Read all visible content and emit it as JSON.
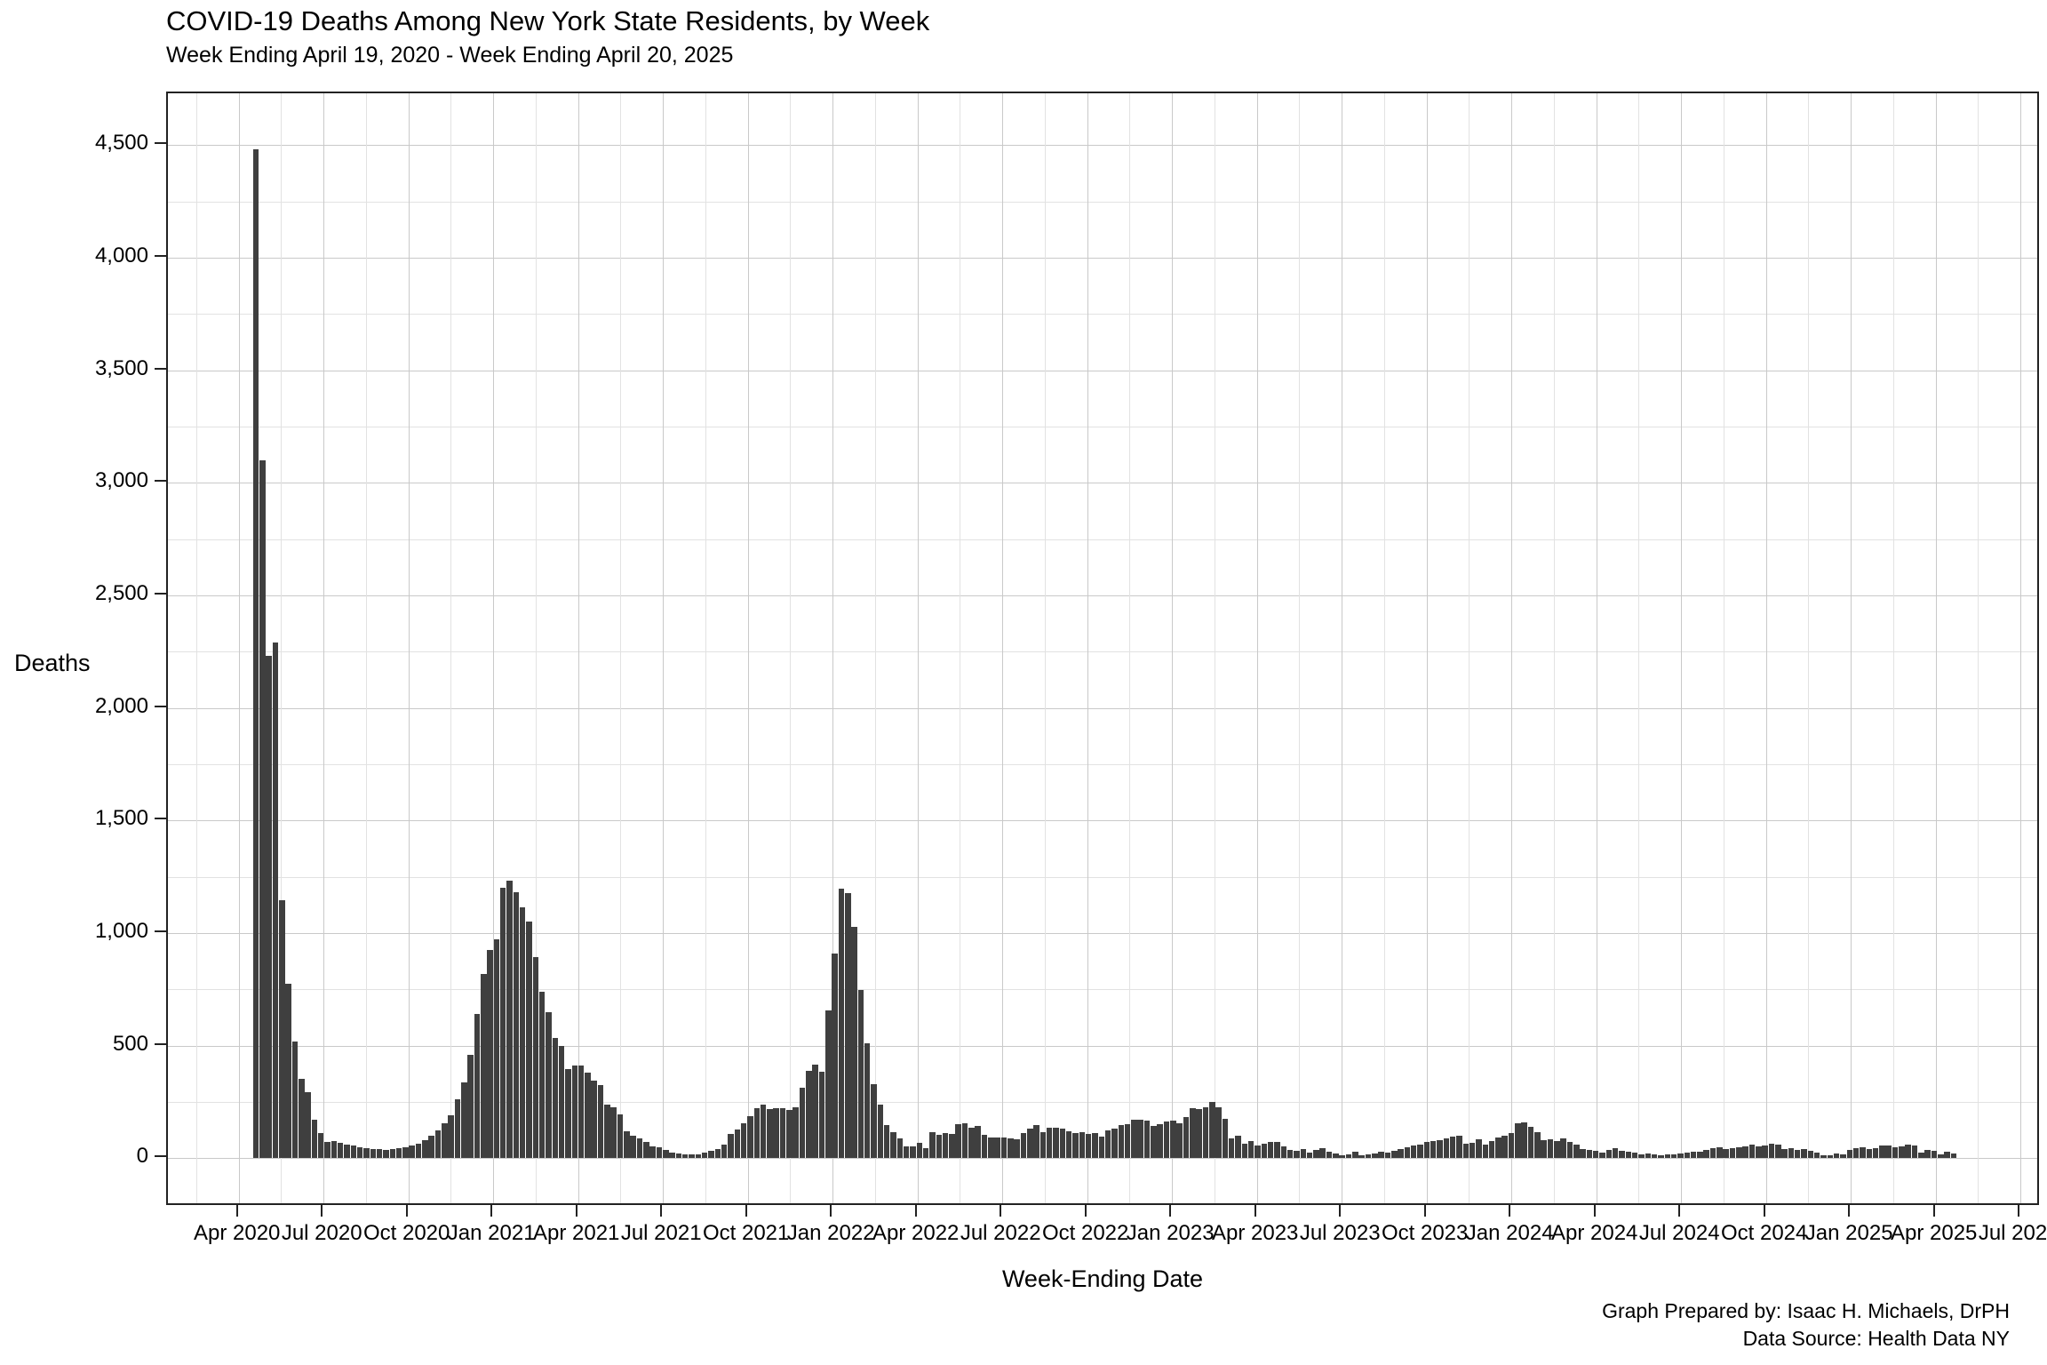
{
  "title": "COVID-19 Deaths Among New York State Residents, by Week",
  "subtitle": "Week Ending April 19, 2020 - Week Ending April 20, 2025",
  "y_axis": {
    "title": "Deaths",
    "tick_labels": [
      "0",
      "500",
      "1,000",
      "1,500",
      "2,000",
      "2,500",
      "3,000",
      "3,500",
      "4,000",
      "4,500"
    ],
    "tick_values": [
      0,
      500,
      1000,
      1500,
      2000,
      2500,
      3000,
      3500,
      4000,
      4500
    ]
  },
  "x_axis": {
    "title": "Week-Ending Date",
    "tick_labels": [
      "Apr 2020",
      "Jul 2020",
      "Oct 2020",
      "Jan 2021",
      "Apr 2021",
      "Jul 2021",
      "Oct 2021",
      "Jan 2022",
      "Apr 2022",
      "Jul 2022",
      "Oct 2022",
      "Jan 2023",
      "Apr 2023",
      "Jul 2023",
      "Oct 2023",
      "Jan 2024",
      "Apr 2024",
      "Jul 2024",
      "Oct 2024",
      "Jan 2025",
      "Apr 2025",
      "Jul 2025"
    ]
  },
  "footer": {
    "prepared_by": "Graph Prepared by: Isaac H. Michaels, DrPH",
    "data_source": "Data Source: Health Data NY"
  },
  "chart_data": {
    "type": "bar",
    "title": "COVID-19 Deaths Among New York State Residents, by Week",
    "subtitle": "Week Ending April 19, 2020 - Week Ending April 20, 2025",
    "xlabel": "Week-Ending Date",
    "ylabel": "Deaths",
    "ylim": [
      0,
      4500
    ],
    "y_major_step": 500,
    "y_minor_step": 250,
    "grid": true,
    "legend": "none",
    "bar_color": "#3F3F3F",
    "interval": "weekly",
    "first_week_ending": "2020-04-19",
    "last_week_ending": "2025-04-20",
    "n_weeks": 262,
    "values": [
      4480,
      3100,
      2230,
      2290,
      1146,
      775,
      520,
      354,
      295,
      170,
      111,
      72,
      75,
      68,
      62,
      58,
      50,
      45,
      42,
      40,
      38,
      42,
      45,
      48,
      55,
      65,
      80,
      100,
      125,
      155,
      190,
      260,
      337,
      459,
      640,
      817,
      923,
      971,
      1203,
      1232,
      1181,
      1115,
      1052,
      895,
      738,
      650,
      536,
      498,
      394,
      413,
      410,
      380,
      345,
      325,
      238,
      225,
      193,
      120,
      101,
      87,
      71,
      54,
      49,
      35,
      25,
      21,
      18,
      16,
      18,
      25,
      31,
      41,
      62,
      106,
      126,
      154,
      185,
      222,
      238,
      218,
      222,
      221,
      214,
      225,
      314,
      387,
      417,
      383,
      655,
      908,
      1199,
      1179,
      1028,
      749,
      509,
      328,
      239,
      146,
      114,
      90,
      51,
      54,
      67,
      45,
      114,
      104,
      110,
      107,
      153,
      155,
      135,
      143,
      104,
      93,
      91,
      93,
      88,
      84,
      112,
      130,
      149,
      114,
      137,
      134,
      130,
      120,
      110,
      114,
      107,
      110,
      97,
      124,
      133,
      147,
      150,
      172,
      172,
      167,
      143,
      153,
      163,
      166,
      157,
      183,
      222,
      218,
      228,
      249,
      225,
      176,
      87,
      101,
      66,
      78,
      55,
      64,
      71,
      74,
      53,
      36,
      32,
      41,
      25,
      36,
      45,
      28,
      21,
      12,
      18,
      28,
      12,
      16,
      20,
      28,
      25,
      33,
      41,
      49,
      55,
      62,
      71,
      78,
      80,
      88,
      97,
      101,
      64,
      67,
      84,
      62,
      78,
      93,
      101,
      113,
      154,
      160,
      141,
      114,
      80,
      85,
      78,
      88,
      71,
      60,
      41,
      38,
      32,
      25,
      36,
      43,
      32,
      28,
      25,
      18,
      22,
      18,
      14,
      18,
      16,
      21,
      25,
      28,
      30,
      38,
      45,
      49,
      41,
      46,
      49,
      54,
      62,
      51,
      57,
      64,
      62,
      41,
      45,
      38,
      41,
      32,
      25,
      12,
      14,
      21,
      16,
      36,
      45,
      47,
      41,
      45,
      57,
      55,
      47,
      51,
      60,
      57,
      25,
      38,
      32,
      16,
      29,
      21
    ]
  }
}
